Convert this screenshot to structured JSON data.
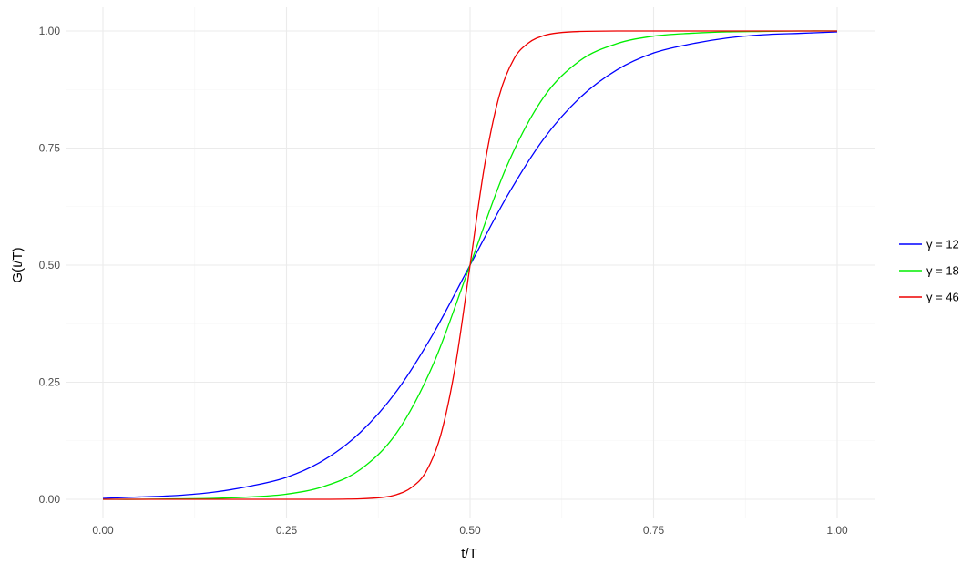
{
  "chart_data": {
    "type": "line",
    "title": "",
    "xlabel": "t/T",
    "ylabel": "G(t/T)",
    "xlim": [
      0,
      1
    ],
    "ylim": [
      0,
      1
    ],
    "x_ticks": [
      0,
      0.25,
      0.5,
      0.75,
      1
    ],
    "x_tick_labels": [
      "0.00",
      "0.25",
      "0.50",
      "0.75",
      "1.00"
    ],
    "y_ticks": [
      0,
      0.25,
      0.5,
      0.75,
      1
    ],
    "y_tick_labels": [
      "0.00",
      "0.25",
      "0.50",
      "0.75",
      "1.00"
    ],
    "grid": true,
    "legend_position": "right",
    "series": [
      {
        "name": "γ = 12",
        "gamma": 12,
        "color": "#0000ff",
        "x": [
          0.0,
          0.05,
          0.1,
          0.15,
          0.2,
          0.25,
          0.3,
          0.35,
          0.4,
          0.45,
          0.5,
          0.55,
          0.6,
          0.65,
          0.7,
          0.75,
          0.8,
          0.85,
          0.9,
          0.95,
          1.0
        ],
        "values": [
          0.002,
          0.005,
          0.008,
          0.015,
          0.028,
          0.047,
          0.083,
          0.142,
          0.231,
          0.354,
          0.5,
          0.646,
          0.769,
          0.858,
          0.917,
          0.953,
          0.972,
          0.985,
          0.992,
          0.995,
          0.998
        ]
      },
      {
        "name": "γ = 18",
        "gamma": 18,
        "color": "#00ee00",
        "x": [
          0.0,
          0.05,
          0.1,
          0.15,
          0.2,
          0.25,
          0.3,
          0.35,
          0.4,
          0.45,
          0.5,
          0.55,
          0.6,
          0.65,
          0.7,
          0.75,
          0.8,
          0.85,
          0.9,
          0.95,
          1.0
        ],
        "values": [
          0.0,
          0.0,
          0.001,
          0.002,
          0.005,
          0.011,
          0.027,
          0.063,
          0.142,
          0.289,
          0.5,
          0.711,
          0.858,
          0.937,
          0.973,
          0.989,
          0.995,
          0.998,
          0.999,
          1.0,
          1.0
        ]
      },
      {
        "name": "γ = 46",
        "gamma": 46,
        "color": "#ee0000",
        "x": [
          0.0,
          0.1,
          0.2,
          0.3,
          0.35,
          0.38,
          0.4,
          0.42,
          0.44,
          0.46,
          0.48,
          0.5,
          0.52,
          0.54,
          0.56,
          0.58,
          0.6,
          0.62,
          0.65,
          0.7,
          0.8,
          0.9,
          1.0
        ],
        "values": [
          0.0,
          0.0,
          0.0,
          0.0,
          0.001,
          0.004,
          0.01,
          0.025,
          0.059,
          0.137,
          0.285,
          0.5,
          0.715,
          0.863,
          0.941,
          0.975,
          0.99,
          0.996,
          0.999,
          1.0,
          1.0,
          1.0,
          1.0
        ]
      }
    ]
  }
}
